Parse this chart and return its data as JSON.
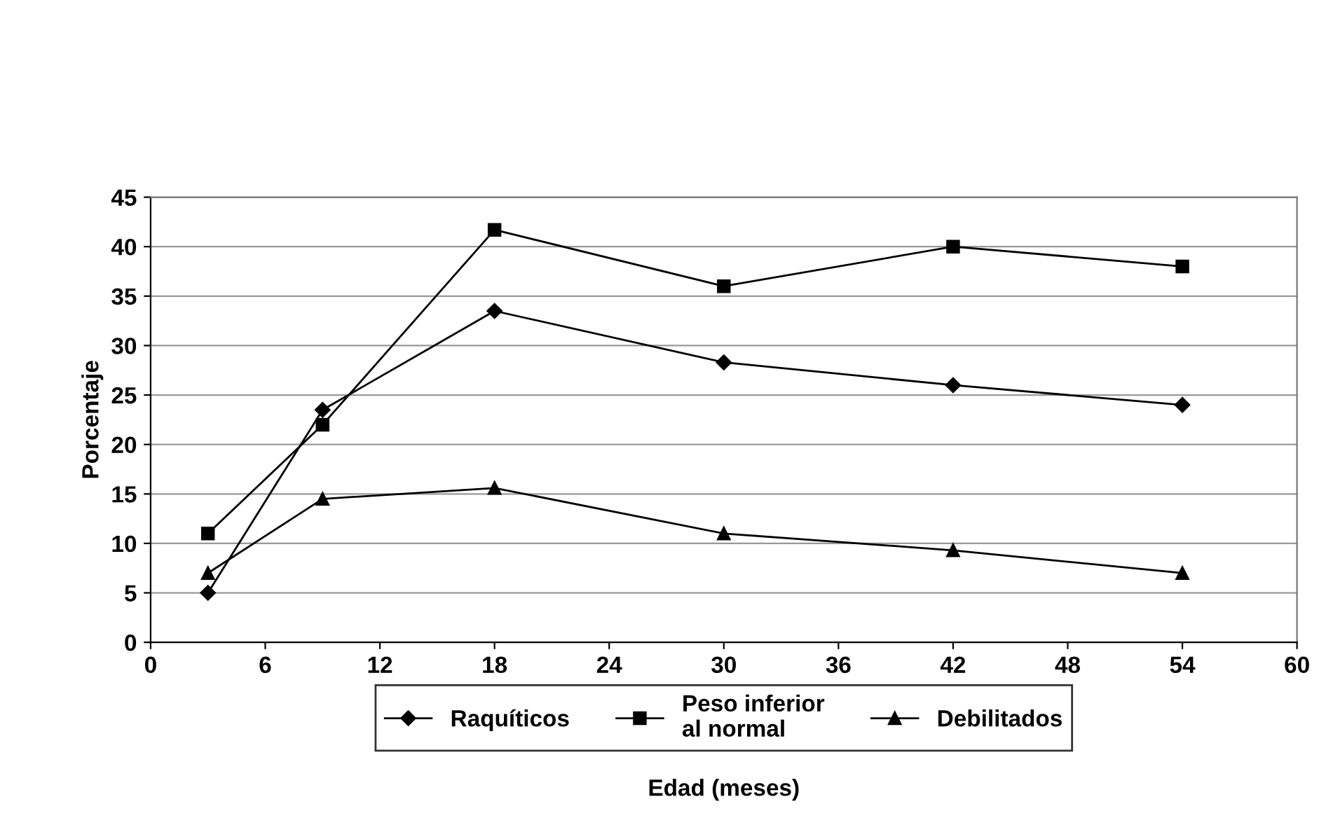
{
  "chart_data": {
    "type": "line",
    "xlabel": "Edad (meses)",
    "ylabel": "Porcentaje",
    "x": [
      3,
      9,
      18,
      30,
      42,
      54
    ],
    "series": [
      {
        "name": "Raquíticos",
        "color": "#000000",
        "marker": "diamond",
        "values": [
          5,
          23.5,
          33.5,
          28.3,
          26,
          24
        ]
      },
      {
        "name": "Peso inferior\nal normal",
        "color": "#000000",
        "marker": "square",
        "values": [
          11,
          22,
          41.7,
          36,
          40,
          38
        ]
      },
      {
        "name": "Debilitados",
        "color": "#000000",
        "marker": "triangle",
        "values": [
          7,
          14.5,
          15.6,
          11,
          9.3,
          7
        ]
      }
    ],
    "xlim": [
      0,
      60
    ],
    "xticks": [
      0,
      6,
      12,
      18,
      24,
      30,
      36,
      42,
      48,
      54,
      60
    ],
    "ylim": [
      0,
      45
    ],
    "yticks": [
      0,
      5,
      10,
      15,
      20,
      25,
      30,
      35,
      40,
      45
    ],
    "grid": "y",
    "legend": "bottom",
    "line_style": "solid"
  }
}
